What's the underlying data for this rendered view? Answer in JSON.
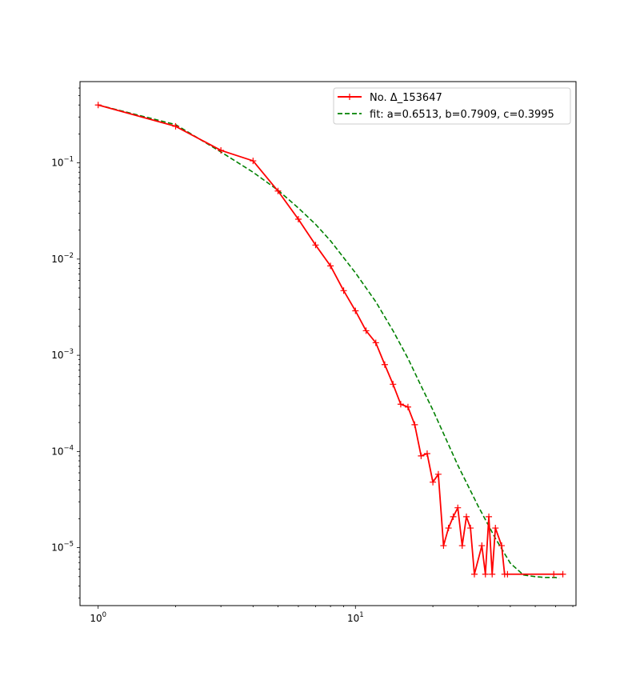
{
  "chart_data": {
    "type": "line",
    "title": "",
    "xlabel": "",
    "ylabel": "",
    "xscale": "log",
    "yscale": "log",
    "xlim": [
      0.85,
      72
    ],
    "ylim": [
      2.5e-06,
      0.7
    ],
    "grid": false,
    "legend_position": "top-right",
    "x_ticks": [
      {
        "value": 1,
        "base": "10",
        "exp": "0"
      },
      {
        "value": 10,
        "base": "10",
        "exp": "1"
      }
    ],
    "y_ticks": [
      {
        "value": 0.1,
        "base": "10",
        "exp": "−1"
      },
      {
        "value": 0.01,
        "base": "10",
        "exp": "−2"
      },
      {
        "value": 0.001,
        "base": "10",
        "exp": "−3"
      },
      {
        "value": 0.0001,
        "base": "10",
        "exp": "−4"
      },
      {
        "value": 1e-05,
        "base": "10",
        "exp": "−5"
      }
    ],
    "series": [
      {
        "name": "No. Δ_153647",
        "color": "#ff0000",
        "style": "solid",
        "marker": "+",
        "points": [
          [
            1,
            0.4
          ],
          [
            2,
            0.24
          ],
          [
            3,
            0.135
          ],
          [
            4,
            0.105
          ],
          [
            5,
            0.051
          ],
          [
            6,
            0.026
          ],
          [
            7,
            0.014
          ],
          [
            8,
            0.0085
          ],
          [
            9,
            0.0047
          ],
          [
            10,
            0.0029
          ],
          [
            11,
            0.0018
          ],
          [
            12,
            0.00135
          ],
          [
            13,
            0.0008
          ],
          [
            14,
            0.0005
          ],
          [
            15,
            0.00031
          ],
          [
            16,
            0.00029
          ],
          [
            17,
            0.00019
          ],
          [
            18,
            9e-05
          ],
          [
            19,
            9.5e-05
          ],
          [
            20,
            4.8e-05
          ],
          [
            21,
            5.8e-05
          ],
          [
            22,
            1.05e-05
          ],
          [
            23,
            1.6e-05
          ],
          [
            24,
            2.1e-05
          ],
          [
            25,
            2.6e-05
          ],
          [
            26,
            1.05e-05
          ],
          [
            27,
            2.1e-05
          ],
          [
            28,
            1.6e-05
          ],
          [
            29,
            5.3e-06
          ],
          [
            31,
            1.05e-05
          ],
          [
            32,
            5.3e-06
          ],
          [
            33,
            2.1e-05
          ],
          [
            34,
            5.3e-06
          ],
          [
            35,
            1.6e-05
          ],
          [
            37,
            1.05e-05
          ],
          [
            38,
            5.3e-06
          ],
          [
            39,
            5.3e-06
          ],
          [
            59,
            5.3e-06
          ],
          [
            64,
            5.3e-06
          ]
        ]
      },
      {
        "name": "fit: a=0.6513, b=0.7909, c=0.3995",
        "color": "#008000",
        "style": "dashed",
        "marker": "",
        "points": [
          [
            1,
            0.4
          ],
          [
            2,
            0.25
          ],
          [
            3,
            0.13
          ],
          [
            4,
            0.08
          ],
          [
            5,
            0.052
          ],
          [
            6,
            0.034
          ],
          [
            7,
            0.023
          ],
          [
            8,
            0.0155
          ],
          [
            10,
            0.0072
          ],
          [
            12,
            0.0036
          ],
          [
            14,
            0.0018
          ],
          [
            16,
            0.00093
          ],
          [
            18,
            0.00048
          ],
          [
            20,
            0.00027
          ],
          [
            25,
            7.2e-05
          ],
          [
            30,
            2.7e-05
          ],
          [
            35,
            1.25e-05
          ],
          [
            40,
            6.9e-06
          ],
          [
            45,
            5.2e-06
          ],
          [
            50,
            5e-06
          ],
          [
            55,
            4.9e-06
          ],
          [
            60,
            4.9e-06
          ],
          [
            62,
            4.8e-06
          ]
        ]
      }
    ]
  }
}
